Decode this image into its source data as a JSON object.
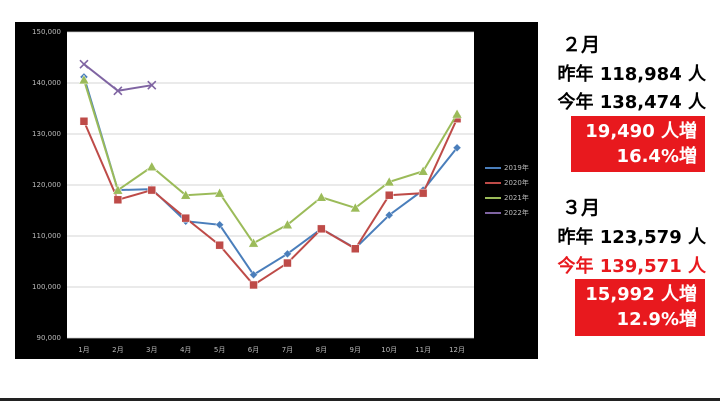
{
  "chart_data": {
    "type": "line",
    "categories": [
      "1月",
      "2月",
      "3月",
      "4月",
      "5月",
      "6月",
      "7月",
      "8月",
      "9月",
      "10月",
      "11月",
      "12月"
    ],
    "series": [
      {
        "name": "2019年",
        "color": "#4a7ebb",
        "marker": "diamond",
        "values": [
          141200,
          119000,
          119200,
          112900,
          112200,
          102400,
          106500,
          111400,
          107600,
          114100,
          119000,
          127300
        ]
      },
      {
        "name": "2020年",
        "color": "#be4b48",
        "marker": "square",
        "values": [
          132500,
          117100,
          119000,
          113500,
          108200,
          100400,
          104700,
          111400,
          107500,
          118000,
          118400,
          133000
        ]
      },
      {
        "name": "2021年",
        "color": "#9bbb59",
        "marker": "triangle",
        "values": [
          140600,
          118984,
          123579,
          118000,
          118400,
          108600,
          112200,
          117600,
          115500,
          120600,
          122700,
          133900
        ]
      },
      {
        "name": "2022年",
        "color": "#7f64a2",
        "marker": "x",
        "values": [
          143700,
          138474,
          139571,
          null,
          null,
          null,
          null,
          null,
          null,
          null,
          null,
          null
        ]
      }
    ],
    "ylim": [
      90000,
      150000
    ],
    "yticks": [
      {
        "value": 90000,
        "label": "90,000"
      },
      {
        "value": 100000,
        "label": "100,000"
      },
      {
        "value": 110000,
        "label": "110,000"
      },
      {
        "value": 120000,
        "label": "120,000"
      },
      {
        "value": 130000,
        "label": "130,000"
      },
      {
        "value": 140000,
        "label": "140,000"
      },
      {
        "value": 150000,
        "label": "150,000"
      }
    ],
    "grid": true,
    "legend": "right"
  },
  "panel": [
    {
      "month": "２月",
      "last": "昨年 118,984 人",
      "this": "今年 138,474 人",
      "diff": "19,490 人増",
      "rate": "16.4%増"
    },
    {
      "month": "３月",
      "last": "昨年 123,579 人",
      "this": "今年 139,571 人",
      "diff": "15,992 人増",
      "rate": "12.9%増"
    }
  ]
}
